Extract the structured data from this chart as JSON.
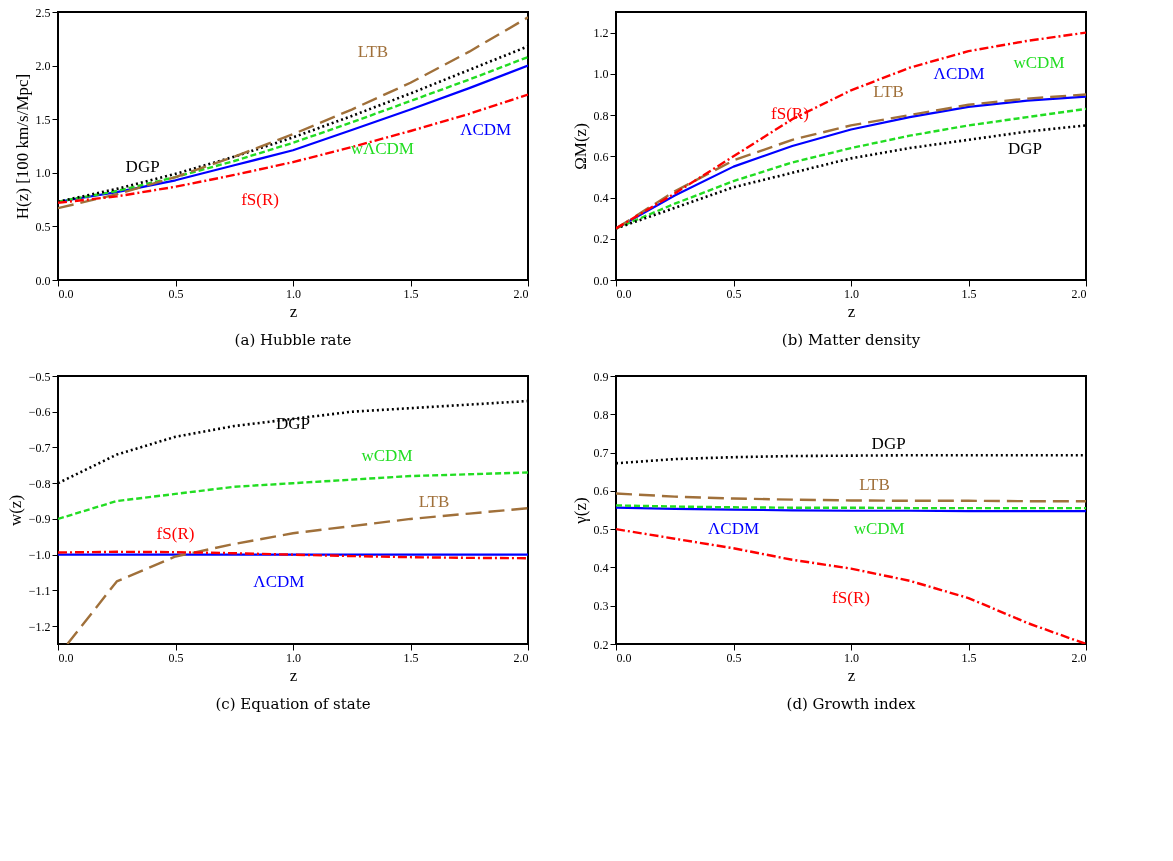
{
  "chart_data": [
    {
      "type": "line",
      "title": "(a) Hubble rate",
      "xlabel": "z",
      "ylabel": "H(z)   [100 km/s/Mpc]",
      "x": [
        0,
        0.25,
        0.5,
        0.75,
        1,
        1.25,
        1.5,
        1.75,
        2
      ],
      "xlim": [
        0,
        2
      ],
      "xticks": [
        {
          "value": 0,
          "label": "0.0"
        },
        {
          "value": 0.5,
          "label": "0.5"
        },
        {
          "value": 1,
          "label": "1.0"
        },
        {
          "value": 1.5,
          "label": "1.5"
        },
        {
          "value": 2,
          "label": "2.0"
        }
      ],
      "ylim": [
        0,
        2.5
      ],
      "yticks": [
        {
          "value": 0,
          "label": "0.0"
        },
        {
          "value": 0.5,
          "label": "0.5"
        },
        {
          "value": 1,
          "label": "1.0"
        },
        {
          "value": 1.5,
          "label": "1.5"
        },
        {
          "value": 2,
          "label": "2.0"
        },
        {
          "value": 2.5,
          "label": "2.5"
        }
      ],
      "grid": false,
      "legend": false,
      "series": [
        {
          "name": "ΛCDM",
          "color": "#0000ff",
          "line_style": "solid",
          "values": [
            0.73,
            0.82,
            0.93,
            1.07,
            1.21,
            1.4,
            1.59,
            1.79,
            2.0
          ]
        },
        {
          "name": "wΛCDM",
          "color": "#22dd22",
          "line_style": "dashed",
          "values": [
            0.73,
            0.83,
            0.96,
            1.11,
            1.28,
            1.47,
            1.67,
            1.87,
            2.08
          ]
        },
        {
          "name": "DGP",
          "color": "#000000",
          "line_style": "dotted",
          "values": [
            0.73,
            0.85,
            0.99,
            1.15,
            1.33,
            1.53,
            1.74,
            1.96,
            2.18
          ]
        },
        {
          "name": "LTB",
          "color": "#a0703a",
          "line_style": "dashed",
          "values": [
            0.67,
            0.8,
            0.96,
            1.15,
            1.36,
            1.59,
            1.84,
            2.13,
            2.45
          ]
        },
        {
          "name": "fS(R)",
          "color": "#ff0000",
          "line_style": "dashed",
          "values": [
            0.72,
            0.78,
            0.87,
            0.98,
            1.1,
            1.24,
            1.39,
            1.55,
            1.73
          ]
        }
      ]
    },
    {
      "type": "line",
      "title": "(b) Matter density",
      "xlabel": "z",
      "ylabel": "ΩM(z)",
      "x": [
        0,
        0.25,
        0.5,
        0.75,
        1,
        1.25,
        1.5,
        1.75,
        2
      ],
      "xlim": [
        0,
        2
      ],
      "xticks": [
        {
          "value": 0,
          "label": "0.0"
        },
        {
          "value": 0.5,
          "label": "0.5"
        },
        {
          "value": 1,
          "label": "1.0"
        },
        {
          "value": 1.5,
          "label": "1.5"
        },
        {
          "value": 2,
          "label": "2.0"
        }
      ],
      "ylim": [
        0,
        1.3
      ],
      "yticks": [
        {
          "value": 0,
          "label": "0.0"
        },
        {
          "value": 0.2,
          "label": "0.2"
        },
        {
          "value": 0.4,
          "label": "0.4"
        },
        {
          "value": 0.6,
          "label": "0.6"
        },
        {
          "value": 0.8,
          "label": "0.8"
        },
        {
          "value": 1,
          "label": "1.0"
        },
        {
          "value": 1.2,
          "label": "1.2"
        }
      ],
      "grid": false,
      "legend": false,
      "series": [
        {
          "name": "ΛCDM",
          "color": "#0000ff",
          "line_style": "solid",
          "values": [
            0.25,
            0.41,
            0.55,
            0.65,
            0.73,
            0.79,
            0.84,
            0.87,
            0.89
          ]
        },
        {
          "name": "wCDM",
          "color": "#22dd22",
          "line_style": "dashed",
          "values": [
            0.25,
            0.37,
            0.48,
            0.57,
            0.64,
            0.7,
            0.75,
            0.79,
            0.83
          ]
        },
        {
          "name": "DGP",
          "color": "#000000",
          "line_style": "dotted",
          "values": [
            0.25,
            0.35,
            0.45,
            0.52,
            0.59,
            0.64,
            0.68,
            0.72,
            0.75
          ]
        },
        {
          "name": "LTB",
          "color": "#a0703a",
          "line_style": "dashed",
          "values": [
            0.25,
            0.43,
            0.58,
            0.68,
            0.75,
            0.8,
            0.85,
            0.88,
            0.9
          ]
        },
        {
          "name": "fS(R)",
          "color": "#ff0000",
          "line_style": "dashed",
          "values": [
            0.25,
            0.42,
            0.6,
            0.78,
            0.92,
            1.03,
            1.11,
            1.16,
            1.2
          ]
        }
      ]
    },
    {
      "type": "line",
      "title": "(c) Equation of state",
      "xlabel": "z",
      "ylabel": "w(z)",
      "x": [
        0,
        0.25,
        0.5,
        0.75,
        1,
        1.25,
        1.5,
        1.75,
        2
      ],
      "xlim": [
        0,
        2
      ],
      "xticks": [
        {
          "value": 0,
          "label": "0.0"
        },
        {
          "value": 0.5,
          "label": "0.5"
        },
        {
          "value": 1,
          "label": "1.0"
        },
        {
          "value": 1.5,
          "label": "1.5"
        },
        {
          "value": 2,
          "label": "2.0"
        }
      ],
      "ylim": [
        -1.25,
        -0.5
      ],
      "yticks": [
        {
          "value": -0.5,
          "label": "−0.5"
        },
        {
          "value": -0.6,
          "label": "−0.6"
        },
        {
          "value": -0.7,
          "label": "−0.7"
        },
        {
          "value": -0.8,
          "label": "−0.8"
        },
        {
          "value": -0.9,
          "label": "−0.9"
        },
        {
          "value": -1,
          "label": "−1.0"
        },
        {
          "value": -1.1,
          "label": "−1.1"
        },
        {
          "value": -1.2,
          "label": "−1.2"
        }
      ],
      "grid": false,
      "legend": false,
      "series": [
        {
          "name": "ΛCDM",
          "color": "#0000ff",
          "line_style": "solid",
          "values": [
            -1,
            -1,
            -1,
            -1,
            -1,
            -1,
            -1,
            -1,
            -1
          ]
        },
        {
          "name": "wCDM",
          "color": "#22dd22",
          "line_style": "dashed",
          "values": [
            -0.9,
            -0.85,
            -0.83,
            -0.81,
            -0.8,
            -0.79,
            -0.78,
            -0.775,
            -0.77
          ]
        },
        {
          "name": "DGP",
          "color": "#000000",
          "line_style": "dotted",
          "values": [
            -0.8,
            -0.72,
            -0.67,
            -0.64,
            -0.62,
            -0.6,
            -0.59,
            -0.58,
            -0.57
          ]
        },
        {
          "name": "LTB",
          "color": "#a0703a",
          "line_style": "dashed",
          "x": [
            0.04,
            0.25,
            0.5,
            0.75,
            1,
            1.25,
            1.5,
            1.75,
            2
          ],
          "values": [
            -1.25,
            -1.075,
            -1.005,
            -0.97,
            -0.94,
            -0.92,
            -0.9,
            -0.885,
            -0.87
          ]
        },
        {
          "name": "fS(R)",
          "color": "#ff0000",
          "line_style": "dashed",
          "values": [
            -0.994,
            -0.992,
            -0.993,
            -0.996,
            -1.0,
            -1.004,
            -1.007,
            -1.009,
            -1.01
          ]
        }
      ]
    },
    {
      "type": "line",
      "title": "(d) Growth index",
      "xlabel": "z",
      "ylabel": "γ(z)",
      "x": [
        0,
        0.25,
        0.5,
        0.75,
        1,
        1.25,
        1.5,
        1.75,
        2
      ],
      "xlim": [
        0,
        2
      ],
      "xticks": [
        {
          "value": 0,
          "label": "0.0"
        },
        {
          "value": 0.5,
          "label": "0.5"
        },
        {
          "value": 1,
          "label": "1.0"
        },
        {
          "value": 1.5,
          "label": "1.5"
        },
        {
          "value": 2,
          "label": "2.0"
        }
      ],
      "ylim": [
        0.2,
        0.9
      ],
      "yticks": [
        {
          "value": 0.2,
          "label": "0.2"
        },
        {
          "value": 0.3,
          "label": "0.3"
        },
        {
          "value": 0.4,
          "label": "0.4"
        },
        {
          "value": 0.5,
          "label": "0.5"
        },
        {
          "value": 0.6,
          "label": "0.6"
        },
        {
          "value": 0.7,
          "label": "0.7"
        },
        {
          "value": 0.8,
          "label": "0.8"
        },
        {
          "value": 0.9,
          "label": "0.9"
        }
      ],
      "grid": false,
      "legend": false,
      "series": [
        {
          "name": "ΛCDM",
          "color": "#0000ff",
          "line_style": "solid",
          "values": [
            0.556,
            0.553,
            0.551,
            0.549,
            0.548,
            0.548,
            0.547,
            0.547,
            0.547
          ]
        },
        {
          "name": "wCDM",
          "color": "#22dd22",
          "line_style": "dashed",
          "values": [
            0.562,
            0.559,
            0.557,
            0.556,
            0.556,
            0.555,
            0.555,
            0.555,
            0.555
          ]
        },
        {
          "name": "DGP",
          "color": "#000000",
          "line_style": "dotted",
          "values": [
            0.672,
            0.683,
            0.688,
            0.691,
            0.692,
            0.693,
            0.693,
            0.693,
            0.693
          ]
        },
        {
          "name": "LTB",
          "color": "#a0703a",
          "line_style": "dashed",
          "values": [
            0.593,
            0.585,
            0.58,
            0.577,
            0.575,
            0.574,
            0.574,
            0.573,
            0.573
          ]
        },
        {
          "name": "fS(R)",
          "color": "#ff0000",
          "line_style": "dashed",
          "values": [
            0.5,
            0.475,
            0.45,
            0.42,
            0.397,
            0.365,
            0.32,
            0.255,
            0.2
          ]
        }
      ]
    }
  ]
}
